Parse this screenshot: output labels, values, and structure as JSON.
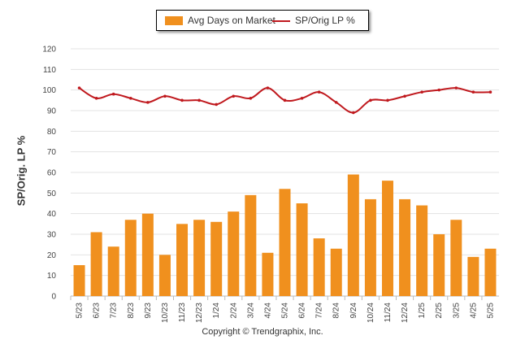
{
  "chart_data": {
    "type": "bar",
    "ylabel": "SP/Orig. LP %",
    "ylim": [
      0,
      120
    ],
    "yticks": [
      0,
      10,
      20,
      30,
      40,
      50,
      60,
      70,
      80,
      90,
      100,
      110,
      120
    ],
    "grid": true,
    "legend_position": "top-center",
    "categories": [
      "5/23",
      "6/23",
      "7/23",
      "8/23",
      "9/23",
      "10/23",
      "11/23",
      "12/23",
      "1/24",
      "2/24",
      "3/24",
      "4/24",
      "5/24",
      "6/24",
      "7/24",
      "8/24",
      "9/24",
      "10/24",
      "11/24",
      "12/24",
      "1/25",
      "2/25",
      "3/25",
      "4/25",
      "5/25"
    ],
    "series": [
      {
        "name": "Avg Days on Market",
        "type": "bar",
        "color": "#f0901e",
        "values": [
          15,
          31,
          24,
          37,
          40,
          20,
          35,
          37,
          36,
          41,
          49,
          21,
          52,
          45,
          28,
          23,
          59,
          47,
          56,
          47,
          44,
          30,
          37,
          19,
          23
        ]
      },
      {
        "name": "SP/Orig LP %",
        "type": "line",
        "color": "#c0191e",
        "values": [
          101,
          96,
          98,
          96,
          94,
          97,
          95,
          95,
          93,
          97,
          96,
          101,
          95,
          96,
          99,
          94,
          89,
          95,
          95,
          97,
          99,
          100,
          101,
          99,
          99
        ]
      }
    ]
  },
  "footer": {
    "copyright": "Copyright © Trendgraphix, Inc."
  }
}
